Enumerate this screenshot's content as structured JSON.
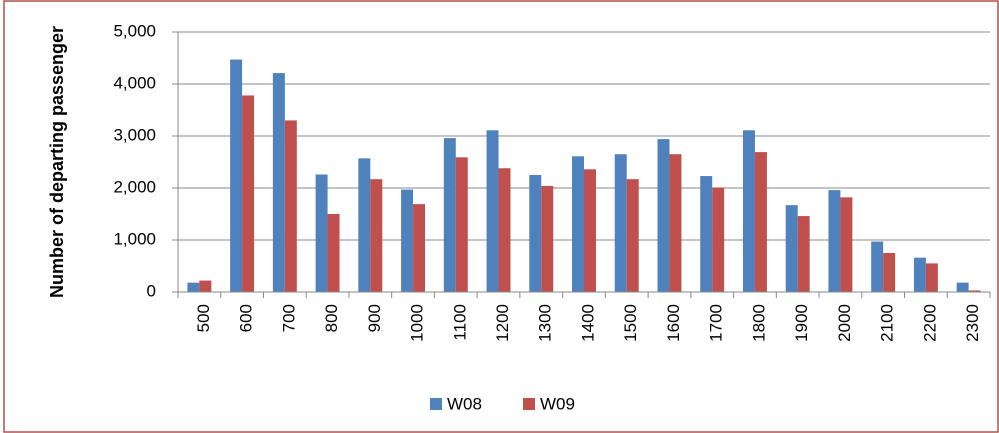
{
  "chart_data": {
    "type": "bar",
    "y_label": "Number of departing passenger",
    "categories": [
      "500",
      "600",
      "700",
      "800",
      "900",
      "1000",
      "1100",
      "1200",
      "1300",
      "1400",
      "1500",
      "1600",
      "1700",
      "1800",
      "1900",
      "2000",
      "2100",
      "2200",
      "2300"
    ],
    "series": [
      {
        "name": "W08",
        "color": "#4f81bd",
        "values": [
          180,
          4470,
          4210,
          2260,
          2570,
          1970,
          2960,
          3110,
          2250,
          2610,
          2650,
          2940,
          2230,
          3110,
          1670,
          1960,
          970,
          660,
          180
        ]
      },
      {
        "name": "W09",
        "color": "#c0504d",
        "values": [
          220,
          3780,
          3300,
          1500,
          2170,
          1690,
          2590,
          2380,
          2040,
          2360,
          2170,
          2650,
          2010,
          2690,
          1460,
          1820,
          750,
          550,
          30
        ]
      }
    ],
    "ylim": [
      0,
      5000
    ],
    "yticks": [
      0,
      {
        "value": 1000,
        "label": "1,000"
      },
      {
        "value": 2000,
        "label": "2,000"
      },
      {
        "value": 3000,
        "label": "3,000"
      },
      {
        "value": 4000,
        "label": "4,000"
      },
      {
        "value": 5000,
        "label": "5,000"
      }
    ],
    "grid": true,
    "legend": "bottom"
  }
}
